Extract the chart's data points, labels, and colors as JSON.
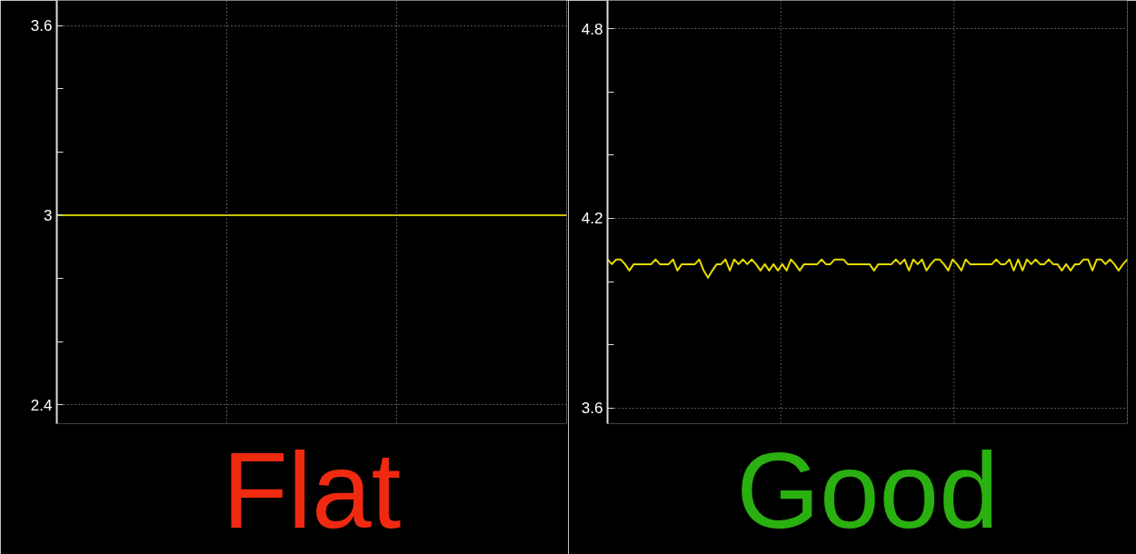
{
  "chart_data": [
    {
      "type": "line",
      "title": "Flat",
      "categories": [
        null,
        null,
        null,
        null,
        null,
        null,
        null,
        null,
        null,
        null,
        null,
        null,
        null,
        null,
        null,
        null,
        null,
        null,
        null,
        null,
        null,
        null,
        null,
        null,
        null,
        null,
        null,
        null,
        null,
        null,
        null,
        null,
        null,
        null,
        null,
        null,
        null,
        null,
        null,
        null
      ],
      "series": [
        {
          "color": "#c8c000",
          "values": [
            3,
            3,
            3,
            3,
            3,
            3,
            3,
            3,
            3,
            3,
            3,
            3,
            3,
            3,
            3,
            3,
            3,
            3,
            3,
            3,
            3,
            3,
            3,
            3,
            3,
            3,
            3,
            3,
            3,
            3,
            3,
            3,
            3,
            3,
            3,
            3,
            3,
            3,
            3,
            3
          ]
        }
      ],
      "ylim": [
        2.34,
        3.68
      ],
      "yticks": [
        2.4,
        {
          "value": 2.6,
          "label": null
        },
        {
          "value": 2.8,
          "label": null
        },
        3,
        {
          "value": 3.2,
          "label": null
        },
        {
          "value": 3.4,
          "label": null
        },
        3.6
      ],
      "grid": true,
      "tick_labels": "y",
      "marker": "none",
      "line_style": "solid"
    },
    {
      "type": "line",
      "title": "Good",
      "categories": [
        null,
        null,
        null,
        null,
        null,
        null,
        null,
        null,
        null,
        null,
        null,
        null,
        null,
        null,
        null,
        null,
        null,
        null,
        null,
        null,
        null,
        null,
        null,
        null,
        null,
        null,
        null,
        null,
        null,
        null,
        null,
        null,
        null,
        null,
        null,
        null,
        null,
        null,
        null,
        null,
        null,
        null,
        null,
        null,
        null,
        null,
        null,
        null,
        null,
        null,
        null,
        null,
        null,
        null,
        null,
        null,
        null,
        null,
        null,
        null,
        null,
        null,
        null,
        null,
        null,
        null,
        null,
        null,
        null,
        null,
        null,
        null,
        null,
        null,
        null,
        null,
        null,
        null,
        null,
        null,
        null,
        null,
        null,
        null,
        null,
        null,
        null,
        null,
        null,
        null,
        null,
        null,
        null,
        null,
        null,
        null,
        null,
        null,
        null,
        null,
        null,
        null,
        null,
        null,
        null,
        null,
        null,
        null,
        null,
        null,
        null,
        null,
        null,
        null,
        null,
        null,
        null,
        null,
        null,
        null
      ],
      "series": [
        {
          "color": "#e6dc00",
          "values": [
            4.07,
            4.055,
            4.07,
            4.07,
            4.055,
            4.035,
            4.055,
            4.055,
            4.055,
            4.055,
            4.055,
            4.07,
            4.055,
            4.055,
            4.055,
            4.07,
            4.035,
            4.055,
            4.055,
            4.055,
            4.055,
            4.07,
            4.035,
            4.012,
            4.035,
            4.055,
            4.055,
            4.07,
            4.035,
            4.07,
            4.055,
            4.07,
            4.055,
            4.07,
            4.055,
            4.035,
            4.055,
            4.035,
            4.055,
            4.035,
            4.055,
            4.035,
            4.07,
            4.055,
            4.035,
            4.055,
            4.055,
            4.055,
            4.055,
            4.07,
            4.055,
            4.055,
            4.07,
            4.07,
            4.07,
            4.055,
            4.055,
            4.055,
            4.055,
            4.055,
            4.055,
            4.035,
            4.055,
            4.055,
            4.055,
            4.055,
            4.07,
            4.055,
            4.07,
            4.035,
            4.07,
            4.055,
            4.07,
            4.035,
            4.055,
            4.07,
            4.07,
            4.055,
            4.035,
            4.07,
            4.055,
            4.035,
            4.07,
            4.055,
            4.055,
            4.055,
            4.055,
            4.055,
            4.055,
            4.07,
            4.055,
            4.055,
            4.07,
            4.035,
            4.07,
            4.035,
            4.07,
            4.055,
            4.07,
            4.055,
            4.055,
            4.07,
            4.055,
            4.055,
            4.035,
            4.055,
            4.035,
            4.055,
            4.055,
            4.07,
            4.07,
            4.035,
            4.07,
            4.07,
            4.055,
            4.07,
            4.055,
            4.035,
            4.055,
            4.07
          ]
        }
      ],
      "ylim": [
        3.55,
        4.89
      ],
      "yticks": [
        3.6,
        {
          "value": 3.8,
          "label": null
        },
        {
          "value": 4.0,
          "label": null
        },
        4.2,
        {
          "value": 4.4,
          "label": null
        },
        {
          "value": 4.6,
          "label": null
        },
        4.8
      ],
      "grid": true,
      "tick_labels": "y",
      "marker": "none",
      "line_style": "solid"
    }
  ]
}
